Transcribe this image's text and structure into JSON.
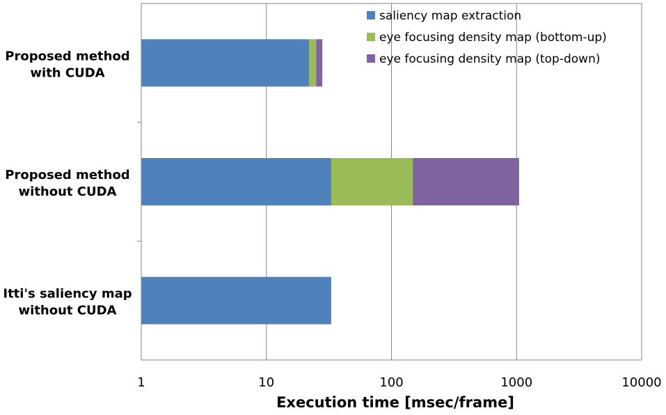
{
  "chart_data": {
    "type": "bar",
    "orientation": "horizontal",
    "stacked": true,
    "x_scale": "log",
    "xlim": [
      1,
      10000
    ],
    "xticks": [
      1,
      10,
      100,
      1000,
      10000
    ],
    "xtick_labels": [
      "1",
      "10",
      "100",
      "1000",
      "10000"
    ],
    "xlabel": "Execution time [msec/frame]",
    "ylabel": "",
    "title": "",
    "grid": "vertical major gridlines",
    "legend_placement": "top-right",
    "categories": [
      {
        "line1": "Proposed method",
        "line2": "with CUDA"
      },
      {
        "line1": "Proposed method",
        "line2": "without CUDA"
      },
      {
        "line1": "Itti's saliency map",
        "line2": "without CUDA"
      }
    ],
    "series": [
      {
        "name": "saliency map extraction",
        "color": "#4F81BD",
        "values": [
          22,
          33,
          33
        ]
      },
      {
        "name": "eye focusing density map (bottom-up)",
        "color": "#9BBB59",
        "values": [
          3,
          115,
          0
        ]
      },
      {
        "name": "eye focusing density map (top-down)",
        "color": "#8064A2",
        "values": [
          3,
          900,
          0
        ]
      }
    ]
  }
}
